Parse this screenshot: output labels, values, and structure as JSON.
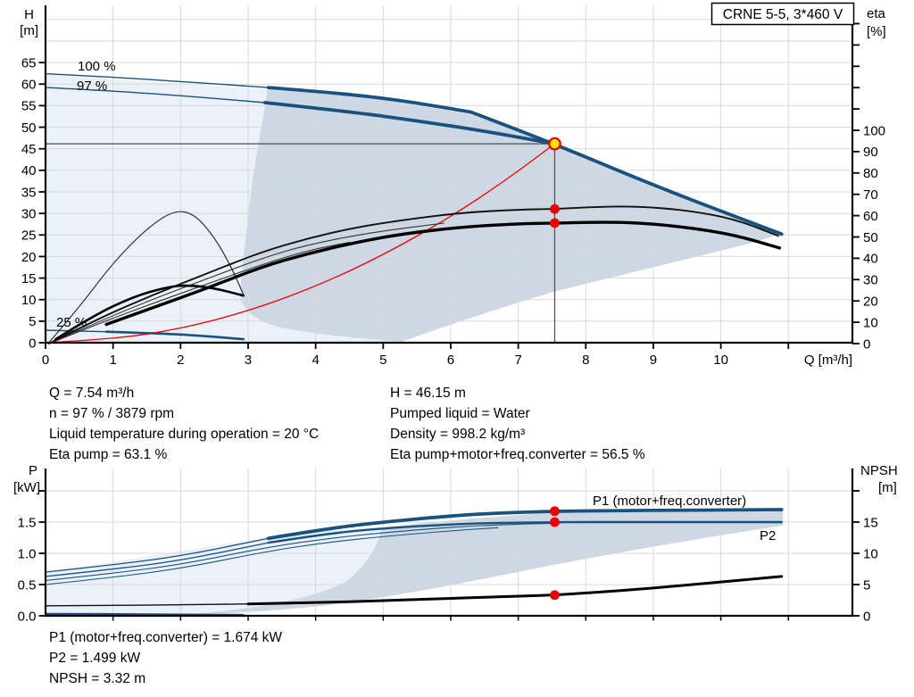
{
  "title_box": {
    "label": "CRNE 5-5, 3*460 V"
  },
  "top_chart": {
    "y_left_title": "H",
    "y_left_unit": "[m]",
    "y_right_title": "eta",
    "y_right_unit": "[%]",
    "x_title": "Q [m³/h]",
    "h_ticks": [
      "65",
      "60",
      "55",
      "50",
      "45",
      "40",
      "35",
      "30",
      "25",
      "20",
      "15",
      "10",
      "5",
      "0"
    ],
    "eta_ticks": [
      "100",
      "90",
      "80",
      "70",
      "60",
      "50",
      "40",
      "30",
      "20",
      "10",
      "0"
    ],
    "q_ticks": [
      "0",
      "1",
      "2",
      "3",
      "4",
      "5",
      "6",
      "7",
      "8",
      "9",
      "10"
    ],
    "labels": {
      "speed_100": "100 %",
      "speed_97": "97 %",
      "speed_25": "25 %"
    }
  },
  "results_top": {
    "left": [
      "Q = 7.54 m³/h",
      "n = 97 % / 3879 rpm",
      "Liquid temperature during operation = 20 °C",
      "Eta pump = 63.1 %"
    ],
    "right": [
      "H = 46.15 m",
      "Pumped liquid = Water",
      "Density = 998.2 kg/m³",
      "Eta pump+motor+freq.converter = 56.5 %"
    ]
  },
  "bottom_chart": {
    "y_left_title": "P",
    "y_left_unit": "[kW]",
    "y_right_title": "NPSH",
    "y_right_unit": "[m]",
    "p_ticks": [
      "1.5",
      "1.0",
      "0.5",
      "0.0"
    ],
    "npsh_ticks": [
      "15",
      "10",
      "5",
      "0"
    ],
    "labels": {
      "p1": "P1 (motor+freq.converter)",
      "p2": "P2"
    }
  },
  "results_bottom": [
    "P1 (motor+freq.converter) = 1.674 kW",
    "P2 = 1.499 kW",
    "NPSH = 3.32 m"
  ],
  "colors": {
    "curve_blue": "#1a527f",
    "label_blue": "#1f5c99",
    "red": "#ee0000",
    "yellow": "#ffe400",
    "fill_light": "#eaf1f8",
    "fill_dark": "#cdd8e4",
    "grid": "#d8d8d8"
  },
  "chart_data": {
    "type": "line",
    "x_axis": {
      "label": "Q [m³/h]",
      "range": [
        0,
        11.95
      ]
    },
    "top": {
      "h_range": [
        0,
        65
      ],
      "eta_range": [
        0,
        100
      ],
      "curve_100_thin": [
        [
          0,
          62.4
        ],
        [
          1,
          61.6
        ],
        [
          2,
          60.6
        ],
        [
          3.3,
          59.2
        ]
      ],
      "curve_100_thick": [
        [
          3.3,
          59.2
        ],
        [
          4.2,
          58.1
        ],
        [
          5.2,
          56.4
        ],
        [
          6.3,
          53.5
        ]
      ],
      "limit_line": [
        [
          6.3,
          53.5
        ],
        [
          7.54,
          46.15
        ],
        [
          9,
          36.5
        ],
        [
          10.9,
          25.2
        ]
      ],
      "curve_97_thin": [
        [
          0,
          59.2
        ],
        [
          1,
          58.4
        ],
        [
          2,
          57.3
        ],
        [
          3.25,
          55.7
        ]
      ],
      "curve_97_thick": [
        [
          3.25,
          55.7
        ],
        [
          4.5,
          53.6
        ],
        [
          5.5,
          51.5
        ],
        [
          6.5,
          49.1
        ],
        [
          7.54,
          46.15
        ]
      ],
      "curve_25_thin": [
        [
          0,
          2.9
        ],
        [
          0.8,
          2.6
        ],
        [
          1.7,
          2.2
        ]
      ],
      "curve_25_thick": [
        [
          0.9,
          2.55
        ],
        [
          1.8,
          2.1
        ],
        [
          2.4,
          1.5
        ],
        [
          2.93,
          0.8
        ]
      ],
      "system_curve": [
        [
          0,
          0
        ],
        [
          1,
          0.81
        ],
        [
          2,
          3.2
        ],
        [
          3,
          7.3
        ],
        [
          4,
          13.0
        ],
        [
          5,
          20.3
        ],
        [
          6,
          29.2
        ],
        [
          6.8,
          37.5
        ],
        [
          7.54,
          46.15
        ]
      ],
      "eta_pump": [
        [
          0.05,
          0
        ],
        [
          0.8,
          12
        ],
        [
          1.6,
          23
        ],
        [
          2.4,
          33
        ],
        [
          3.2,
          43
        ],
        [
          3.9,
          49.5
        ],
        [
          4.6,
          54.5
        ],
        [
          5.3,
          58
        ],
        [
          6.2,
          61.5
        ],
        [
          7,
          62.8
        ],
        [
          7.54,
          63.1
        ],
        [
          8.2,
          64.2
        ],
        [
          8.8,
          64.3
        ],
        [
          9.5,
          62.5
        ],
        [
          10.2,
          58.5
        ],
        [
          10.85,
          50.5
        ]
      ],
      "eta_pump_b": [
        [
          0.05,
          0
        ],
        [
          0.8,
          10.5
        ],
        [
          1.6,
          21
        ],
        [
          2.4,
          30.5
        ],
        [
          3.2,
          40
        ],
        [
          3.9,
          46.5
        ],
        [
          4.8,
          52
        ],
        [
          5.9,
          56.5
        ]
      ],
      "eta_pump_c": [
        [
          0.05,
          0
        ],
        [
          0.8,
          9.5
        ],
        [
          1.6,
          19
        ],
        [
          2.4,
          28
        ],
        [
          3.2,
          37
        ],
        [
          3.9,
          43.8
        ],
        [
          4.5,
          47.5
        ]
      ],
      "eta_total": [
        [
          0.9,
          9
        ],
        [
          1.6,
          17
        ],
        [
          2.4,
          26
        ],
        [
          3.2,
          36
        ],
        [
          3.9,
          42.3
        ],
        [
          4.6,
          47.5
        ],
        [
          5.3,
          51.5
        ],
        [
          6.2,
          54.8
        ],
        [
          7,
          56.2
        ],
        [
          7.54,
          56.5
        ],
        [
          8.2,
          57
        ],
        [
          8.8,
          56.6
        ],
        [
          9.5,
          54.5
        ],
        [
          10.2,
          51
        ],
        [
          10.87,
          44.8
        ]
      ],
      "eta_arch": [
        [
          0.05,
          0.5
        ],
        [
          0.5,
          17
        ],
        [
          1,
          38
        ],
        [
          1.5,
          54
        ],
        [
          1.9,
          62.5
        ],
        [
          2.2,
          61
        ],
        [
          2.5,
          50
        ],
        [
          2.75,
          36
        ],
        [
          2.93,
          23
        ]
      ],
      "eta_arc_small": [
        [
          0.15,
          2
        ],
        [
          0.7,
          13
        ],
        [
          1.3,
          22
        ],
        [
          1.8,
          26.5
        ],
        [
          2.1,
          27.5
        ],
        [
          2.5,
          26
        ],
        [
          2.93,
          22.5
        ]
      ]
    },
    "bottom": {
      "p_range": [
        0,
        2
      ],
      "npsh_range": [
        0,
        20
      ],
      "p1_thin": [
        [
          0,
          0.7
        ],
        [
          1,
          0.815
        ],
        [
          2,
          0.955
        ],
        [
          3.3,
          1.24
        ]
      ],
      "p1_thick": [
        [
          3.3,
          1.24
        ],
        [
          4.2,
          1.4
        ],
        [
          5,
          1.5
        ],
        [
          6,
          1.6
        ],
        [
          6.6,
          1.64
        ],
        [
          7.54,
          1.674
        ],
        [
          8.5,
          1.683
        ],
        [
          9.5,
          1.69
        ],
        [
          10.9,
          1.7
        ]
      ],
      "p2_thin": [
        [
          0,
          0.63
        ],
        [
          1,
          0.745
        ],
        [
          2,
          0.885
        ],
        [
          3.3,
          1.17
        ]
      ],
      "p2_thick": [
        [
          3.3,
          1.17
        ],
        [
          4.2,
          1.32
        ],
        [
          5,
          1.4
        ],
        [
          6,
          1.465
        ],
        [
          6.6,
          1.485
        ],
        [
          7.54,
          1.499
        ],
        [
          8.5,
          1.5
        ],
        [
          10.9,
          1.5
        ]
      ],
      "p3": [
        [
          0,
          0.565
        ],
        [
          1,
          0.68
        ],
        [
          2,
          0.82
        ],
        [
          3.3,
          1.1
        ],
        [
          4.2,
          1.24
        ],
        [
          5,
          1.33
        ],
        [
          6,
          1.42
        ],
        [
          6.9,
          1.465
        ],
        [
          7.5,
          1.48
        ]
      ],
      "p4": [
        [
          0,
          0.5
        ],
        [
          1,
          0.615
        ],
        [
          2,
          0.755
        ],
        [
          3.3,
          1.035
        ],
        [
          4.2,
          1.18
        ],
        [
          5,
          1.27
        ],
        [
          6,
          1.36
        ],
        [
          6.7,
          1.41
        ]
      ],
      "p25": [
        [
          0,
          0.03
        ],
        [
          1,
          0.03
        ],
        [
          2,
          0.02
        ],
        [
          2.93,
          0.015
        ]
      ],
      "npsh_thin": [
        [
          0,
          1.6
        ],
        [
          1,
          1.65
        ],
        [
          2,
          1.75
        ],
        [
          3,
          1.9
        ]
      ],
      "npsh_thick": [
        [
          3,
          1.9
        ],
        [
          4,
          2.1
        ],
        [
          5,
          2.4
        ],
        [
          6,
          2.8
        ],
        [
          7,
          3.15
        ],
        [
          7.54,
          3.32
        ],
        [
          8.5,
          4.0
        ],
        [
          9.5,
          4.9
        ],
        [
          10.9,
          6.3
        ]
      ]
    },
    "duty_point": {
      "q": 7.54,
      "h": 46.15,
      "n_percent": 97,
      "rpm": 3879,
      "eta_pump": 63.1,
      "eta_total": 56.5,
      "p1": 1.674,
      "p2": 1.499,
      "npsh": 3.32
    }
  }
}
